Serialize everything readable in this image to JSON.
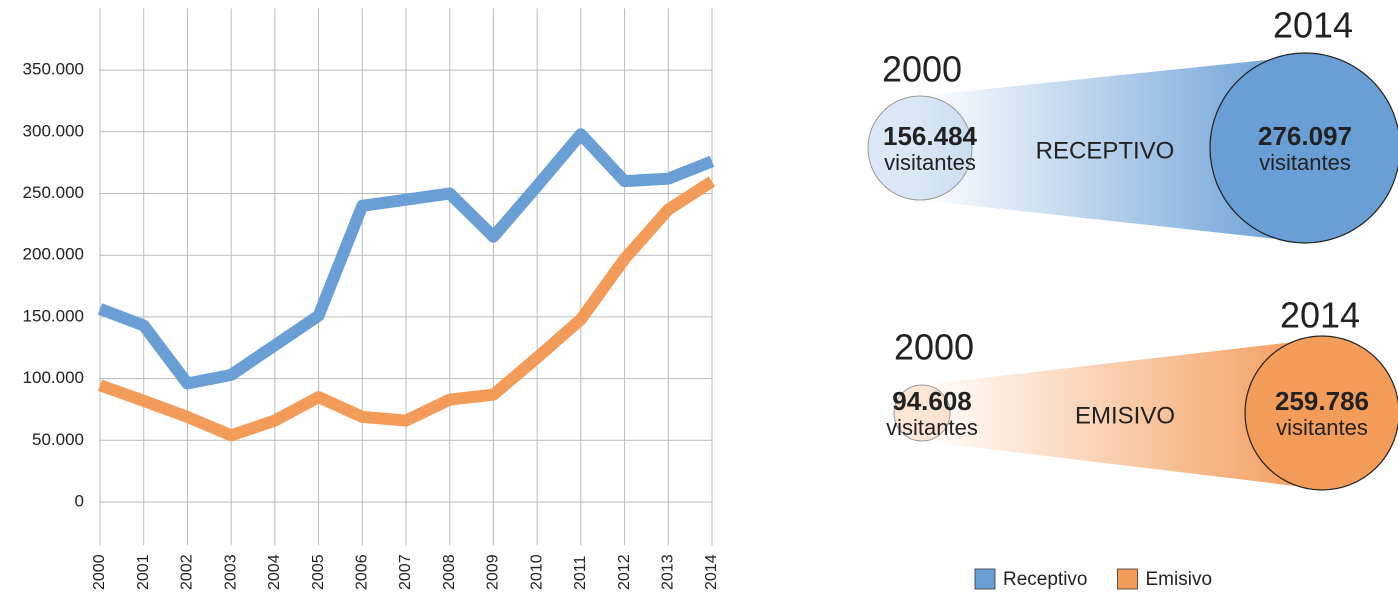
{
  "chart_data": {
    "type": "line",
    "categories": [
      "2000",
      "2001",
      "2002",
      "2003",
      "2004",
      "2005",
      "2006",
      "2007",
      "2008",
      "2009",
      "2010",
      "2011",
      "2012",
      "2013",
      "2014"
    ],
    "series": [
      {
        "name": "Receptivo",
        "color": "#6a9fd6",
        "values": [
          156484,
          143000,
          96000,
          103000,
          127000,
          151000,
          240000,
          245000,
          250000,
          215000,
          256000,
          298000,
          260000,
          262000,
          276097
        ]
      },
      {
        "name": "Emisivo",
        "color": "#f39c5a",
        "values": [
          94608,
          82000,
          69000,
          54000,
          66000,
          85000,
          69000,
          66000,
          83000,
          87000,
          117000,
          148000,
          197000,
          237000,
          259786
        ]
      }
    ],
    "ylim": [
      -35000,
      400000
    ],
    "yticks": [
      0,
      {
        "value": 50000,
        "label": "50.000"
      },
      {
        "value": 100000,
        "label": "100.000"
      },
      {
        "value": 150000,
        "label": "150.000"
      },
      {
        "value": 200000,
        "label": "200.000"
      },
      {
        "value": 250000,
        "label": "250.000"
      },
      {
        "value": 300000,
        "label": "300.000"
      },
      {
        "value": 350000,
        "label": "350.000"
      }
    ],
    "grid": true
  },
  "comparisons": [
    {
      "label": "RECEPTIVO",
      "start_year": "2000",
      "end_year": "2014",
      "start_value": "156.484",
      "end_value": "276.097",
      "unit": "visitantes"
    },
    {
      "label": "EMISIVO",
      "start_year": "2000",
      "end_year": "2014",
      "start_value": "94.608",
      "end_value": "259.786",
      "unit": "visitantes"
    }
  ]
}
